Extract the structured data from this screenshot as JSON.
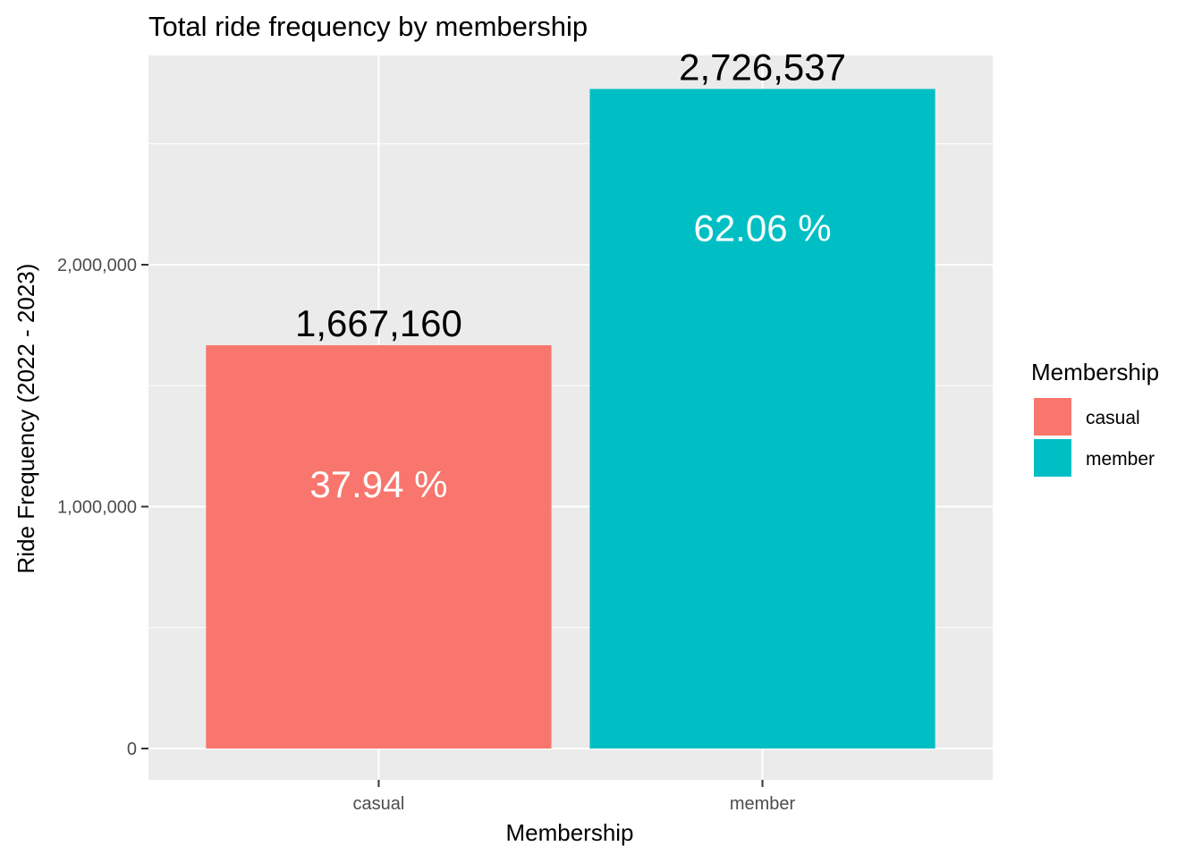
{
  "chart_data": {
    "type": "bar",
    "title": "Total ride frequency by membership",
    "xlabel": "Membership",
    "ylabel": "Ride Frequency (2022 - 2023)",
    "categories": [
      "casual",
      "member"
    ],
    "values": [
      1667160,
      2726537
    ],
    "value_labels": [
      "1,667,160",
      "2,726,537"
    ],
    "percent_labels": [
      "37.94 %",
      "62.06 %"
    ],
    "colors": [
      "#F8766D",
      "#00BFC4"
    ],
    "ylim": [
      0,
      2864000
    ],
    "yticks": [
      0,
      1000000,
      2000000
    ],
    "ytick_labels": [
      "0",
      "1,000,000",
      "2,000,000"
    ],
    "grid": true,
    "panel_background": "#EBEBEB",
    "legend": {
      "title": "Membership",
      "position": "right",
      "entries": [
        {
          "label": "casual",
          "color": "#F8766D"
        },
        {
          "label": "member",
          "color": "#00BFC4"
        }
      ]
    }
  }
}
